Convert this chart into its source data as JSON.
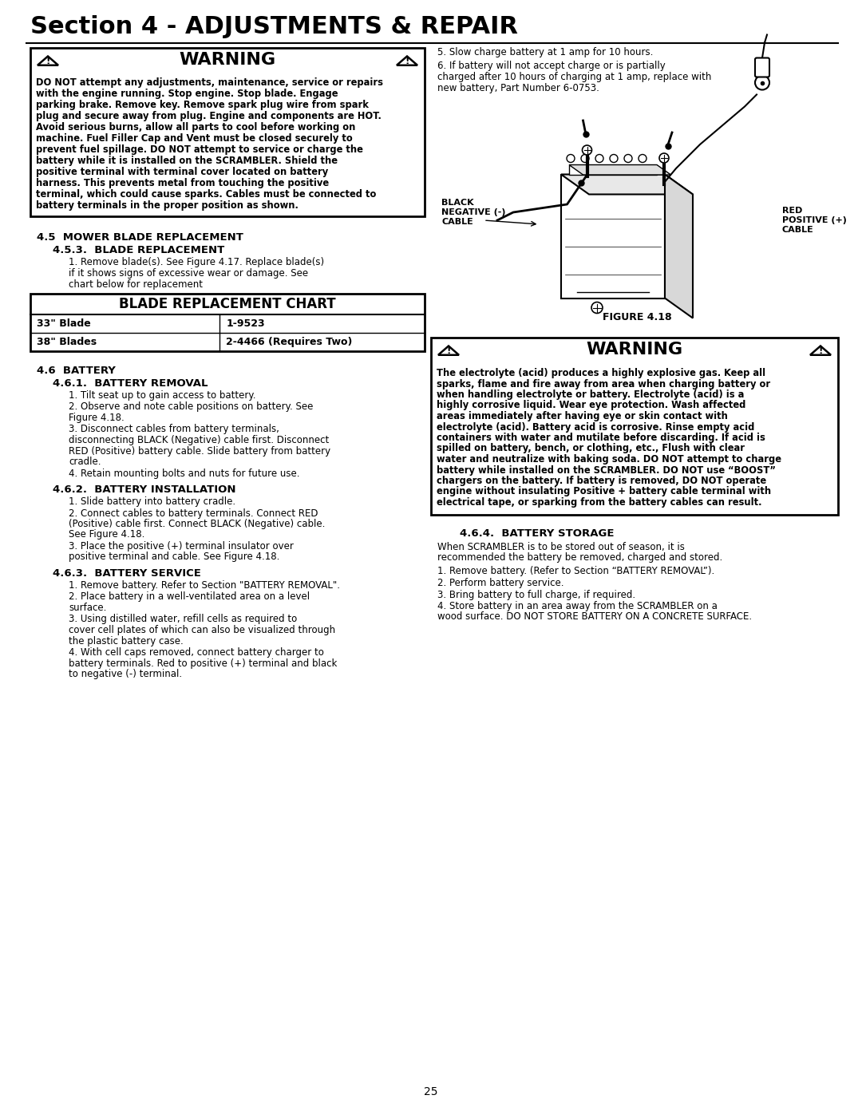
{
  "page_title": "Section 4 - ADJUSTMENTS & REPAIR",
  "bg_color": "#ffffff",
  "page_number": "25",
  "warning1_body": "DO NOT attempt any adjustments, maintenance, service or repairs with the engine running. Stop engine. Stop blade. Engage parking brake. Remove key. Remove spark plug wire from spark plug and secure away from plug. Engine and components are HOT. Avoid serious burns, allow all parts to cool before working on machine. Fuel Filler Cap and Vent must be closed securely to prevent fuel spillage. DO NOT attempt to service or charge the battery while it is installed on the SCRAMBLER. Shield the positive terminal with terminal cover located on battery harness. This prevents metal from touching the positive terminal, which could cause sparks. Cables must be connected to battery terminals in the proper position as shown.",
  "section45_header": "4.5  MOWER BLADE REPLACEMENT",
  "section453_header": "4.5.3.  BLADE REPLACEMENT",
  "section453_p1_bold": "1.",
  "section453_p1_rest": " Remove blade(s). See Figure 4.17. Replace blade(s) if it shows signs of excessive wear or damage. See chart below for replacement",
  "blade_chart_title": "BLADE REPLACEMENT CHART",
  "blade_row1_col1": "33\" Blade",
  "blade_row1_col2": "1-9523",
  "blade_row2_col1": "38\" Blades",
  "blade_row2_col2": "2-4466 (Requires Two)",
  "section46_header": "4.6  BATTERY",
  "section461_header": "4.6.1.  BATTERY REMOVAL",
  "section461_items": [
    "1.  Tilt seat up to gain access to battery.",
    "2.  Observe and note cable positions on battery. See Figure 4.18.",
    "3.  Disconnect cables from battery terminals, disconnecting BLACK (Negative) cable first. Disconnect RED (Positive) battery cable. Slide battery from battery cradle.",
    "4.  Retain mounting bolts and nuts for future use."
  ],
  "section462_header": "4.6.2.  BATTERY INSTALLATION",
  "section462_items": [
    "1.  Slide battery into battery cradle.",
    "2.  Connect cables to battery terminals.  Connect RED (Positive) cable first. Connect BLACK (Negative) cable. See Figure 4.18.",
    "3.  Place the positive (+) terminal insulator over positive terminal and cable. See Figure 4.18."
  ],
  "section463_header": "4.6.3.  BATTERY SERVICE",
  "section463_items": [
    "1.  Remove battery. Refer to Section \"BATTERY REMOVAL\".",
    "2.  Place battery in a well-ventilated area on a level surface.",
    "3.  Using distilled water, refill cells as required to cover cell plates of which can also be visualized through the plastic battery case.",
    "4.  With cell caps removed, connect battery charger to battery terminals.  Red to positive (+) terminal and black to negative (-) terminal."
  ],
  "right_item5": "5.  Slow charge battery at 1 amp for 10 hours.",
  "right_item6": "6.  If battery will not accept charge or is partially charged after 10 hours of charging at 1 amp, replace with new battery, Part Number  6-0753.",
  "label_black": "BLACK\nNEGATIVE (-)\nCABLE",
  "label_red": "RED\nPOSITIVE (+)\nCABLE",
  "figure_label": "FIGURE 4.18",
  "warning2_body": "The electrolyte (acid) produces a highly explosive gas. Keep all sparks, flame and fire away from area when charging battery or when handling electrolyte or battery. Electrolyte (acid) is a highly corrosive liquid. Wear eye protection. Wash affected areas immediately after having eye or skin contact with electrolyte (acid). Battery acid is corrosive. Rinse empty acid containers with water and mutilate before discarding. If acid is spilled on battery, bench, or clothing, etc., Flush with clear water and neutralize with baking soda. DO NOT attempt to charge battery while installed on the SCRAMBLER. DO NOT use “BOOST” chargers on the battery. If battery is removed, DO NOT operate engine without insulating Positive + battery cable terminal with electrical tape, or sparking from the battery cables can result.",
  "section464_header": "4.6.4.  BATTERY STORAGE",
  "section464_intro": "When SCRAMBLER is to be stored out of season, it is recommended the battery be removed, charged and stored.",
  "section464_items": [
    "1.  Remove battery. (Refer to Section “BATTERY REMOVAL”).",
    "2.  Perform battery service.",
    "3.  Bring battery to full charge, if required.",
    "4.  Store battery in an area away from the SCRAMBLER on a wood surface. DO NOT STORE BATTERY ON A CONCRETE SURFACE."
  ]
}
